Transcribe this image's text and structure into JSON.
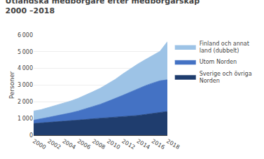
{
  "chart_data": {
    "type": "area",
    "stacked": true,
    "title": "Utländska medborgare efter medborgarskap",
    "subtitle": "2000 –2018",
    "ylabel": "Personer",
    "x": [
      2000,
      2001,
      2002,
      2003,
      2004,
      2005,
      2006,
      2007,
      2008,
      2009,
      2010,
      2011,
      2012,
      2013,
      2014,
      2015,
      2016,
      2017,
      2018
    ],
    "series": [
      {
        "name": "Sverige och övriga\nNorden",
        "color": "#1f3d6e",
        "values": [
          700,
          730,
          760,
          790,
          820,
          860,
          900,
          940,
          980,
          1010,
          1040,
          1070,
          1100,
          1130,
          1180,
          1240,
          1300,
          1360,
          1420
        ]
      },
      {
        "name": "Utom Norden",
        "color": "#4472c4",
        "values": [
          200,
          240,
          310,
          370,
          420,
          480,
          550,
          640,
          740,
          850,
          990,
          1130,
          1290,
          1450,
          1600,
          1720,
          1820,
          1900,
          1900
        ]
      },
      {
        "name": "Finland och annat\nland (dubbelt)",
        "color": "#9dc3e6",
        "values": [
          550,
          560,
          590,
          620,
          660,
          710,
          760,
          820,
          890,
          960,
          1050,
          1150,
          1280,
          1390,
          1480,
          1560,
          1640,
          1760,
          2280
        ]
      }
    ],
    "xlim": [
      2000,
      2018
    ],
    "xticks": [
      2000,
      2002,
      2004,
      2006,
      2008,
      2010,
      2012,
      2014,
      2016,
      2018
    ],
    "ylim": [
      0,
      6000
    ],
    "yticks": [
      0,
      {
        "value": 1000,
        "label": "1 000"
      },
      {
        "value": 2000,
        "label": "2 000"
      },
      {
        "value": 3000,
        "label": "3 000"
      },
      {
        "value": 4000,
        "label": "4 000"
      },
      {
        "value": 5000,
        "label": "5 000"
      },
      {
        "value": 6000,
        "label": "6 000"
      }
    ],
    "grid": true,
    "legend": "right"
  }
}
